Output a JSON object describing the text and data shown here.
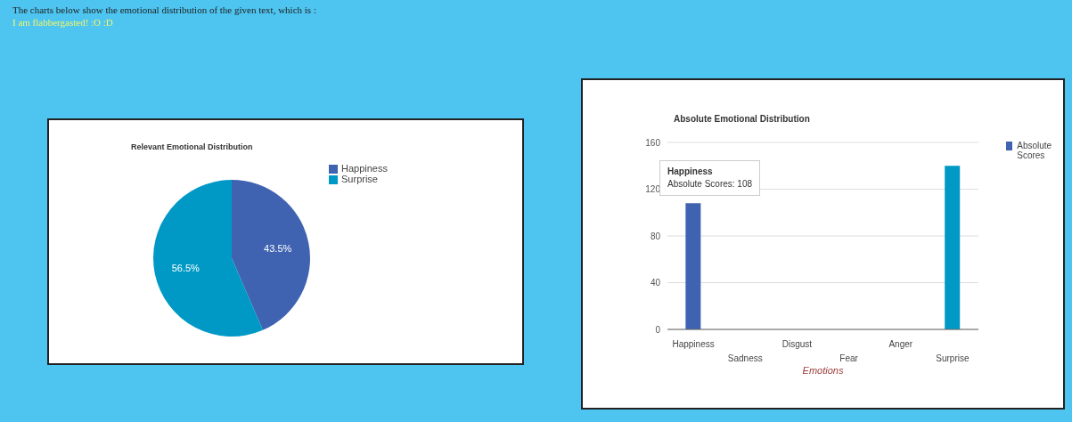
{
  "chart_data": [
    {
      "type": "pie",
      "title": "Relevant Emotional Distribution",
      "categories": [
        "Happiness",
        "Surprise"
      ],
      "values": [
        43.5,
        56.5
      ],
      "value_labels": [
        "43.5%",
        "56.5%"
      ],
      "colors": [
        "#3f63b0",
        "#0099c6"
      ],
      "legend": "right",
      "annotations": [
        "The charts below show the emotional distribution of the given text, which is :",
        "I am flabbergasted! :O :D"
      ]
    },
    {
      "type": "bar",
      "title": "Absolute Emotional Distribution",
      "xlabel": "Emotions",
      "categories": [
        "Happiness",
        "Sadness",
        "Disgust",
        "Fear",
        "Anger",
        "Surprise"
      ],
      "series": [
        {
          "name": "Absolute Scores",
          "color": "#3f63b0",
          "colors": [
            "#3f63b0",
            "#3f63b0",
            "#3f63b0",
            "#3f63b0",
            "#3f63b0",
            "#0099c6"
          ],
          "values": [
            108,
            0,
            0,
            0,
            0,
            140
          ]
        }
      ],
      "ylim": [
        0,
        160
      ],
      "yticks": [
        0,
        40,
        80,
        120,
        160
      ],
      "grid": "y",
      "legend": "right",
      "annotations": [
        "Happiness",
        "Absolute Scores: 108"
      ]
    }
  ]
}
